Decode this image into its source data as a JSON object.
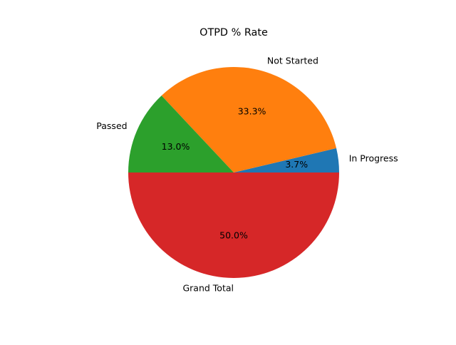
{
  "chart_data": {
    "type": "pie",
    "title": "OTPD % Rate",
    "categories": [
      "In Progress",
      "Not Started",
      "Passed",
      "Grand Total"
    ],
    "values": [
      3.7,
      33.3,
      13.0,
      50.0
    ],
    "percent_labels": [
      "3.7%",
      "33.3%",
      "13.0%",
      "50.0%"
    ],
    "colors": [
      "#1f77b4",
      "#ff7f0e",
      "#2ca02c",
      "#d62728"
    ],
    "start_angle_deg": 0,
    "direction": "counterclockwise",
    "legend": "none"
  }
}
